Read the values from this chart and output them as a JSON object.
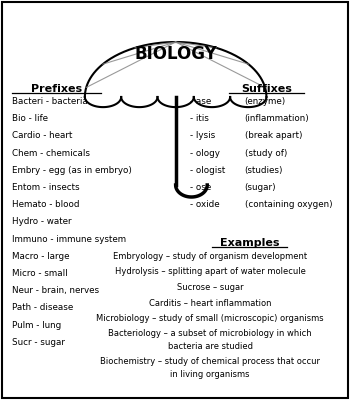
{
  "title": "BIOLOGY",
  "bg_color": "#ffffff",
  "border_color": "#000000",
  "prefixes_header": "Prefixes",
  "prefixes": [
    "Bacteri - bacteria",
    "Bio - life",
    "Cardio - heart",
    "Chem - chemicals",
    "Embry - egg (as in embryo)",
    "Entom - insects",
    "Hemato - blood",
    "Hydro - water",
    "Immuno - immune system",
    "Macro - large",
    "Micro - small",
    "Neur - brain, nerves",
    "Path - disease",
    "Pulm - lung",
    "Sucr - sugar"
  ],
  "suffixes_header": "Suffixes",
  "suffixes_left": [
    "- ase",
    "- itis",
    "- lysis",
    "- ology",
    "- ologist",
    "- ose",
    "- oxide"
  ],
  "suffixes_right": [
    "(enzyme)",
    "(inflammation)",
    "(break apart)",
    "(study of)",
    "(studies)",
    "(sugar)",
    "(containing oxygen)"
  ],
  "examples_header": "Examples",
  "examples": [
    "Embryology – study of organism development",
    "Hydrolysis – splitting apart of water molecule",
    "Sucrose – sugar",
    "Carditis – heart inflammation",
    "Microbiology – study of small (microscopic) organisms",
    "Bacteriology – a subset of microbiology in which\nbacteria are studied",
    "Biochemistry – study of chemical process that occur\nin living organisms"
  ]
}
